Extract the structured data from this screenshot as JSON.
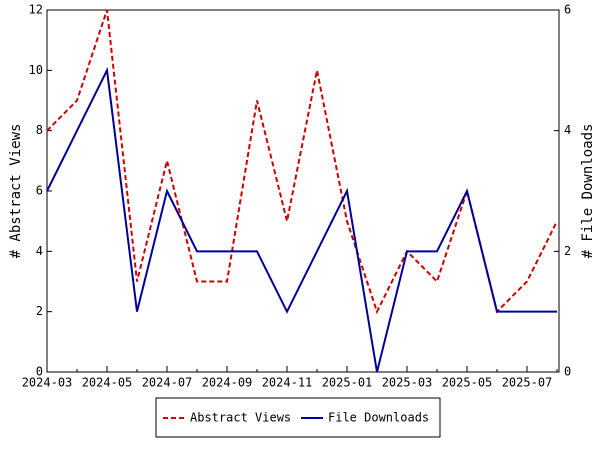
{
  "chart_data": {
    "type": "line",
    "y_label": "# Abstract Views",
    "y2_label": "# File Downloads",
    "categories": [
      "2024-03",
      null,
      "2024-05",
      null,
      "2024-07",
      null,
      "2024-09",
      null,
      "2024-11",
      null,
      "2025-01",
      null,
      "2025-03",
      null,
      "2025-05",
      null,
      "2025-07",
      null
    ],
    "series": [
      {
        "name": "Abstract Views",
        "color": "#cc0000",
        "dashed": true,
        "values": [
          8,
          9,
          12,
          3,
          7,
          3,
          3,
          9,
          5,
          10,
          5,
          2,
          4,
          3,
          6,
          2,
          3,
          5
        ]
      },
      {
        "name": "File Downloads",
        "color": "#000099",
        "dashed": false,
        "axis": "y2",
        "values": [
          3,
          4,
          5,
          1,
          3,
          2,
          2,
          2,
          1,
          2,
          3,
          0,
          2,
          2,
          3,
          1,
          1,
          1
        ]
      }
    ],
    "ylim": [
      0,
      12
    ],
    "yticks": [
      0,
      2,
      4,
      6,
      8,
      10,
      12
    ],
    "y2lim": [
      0,
      6
    ],
    "y2ticks": [
      0,
      2,
      4,
      6
    ],
    "grid": false
  }
}
